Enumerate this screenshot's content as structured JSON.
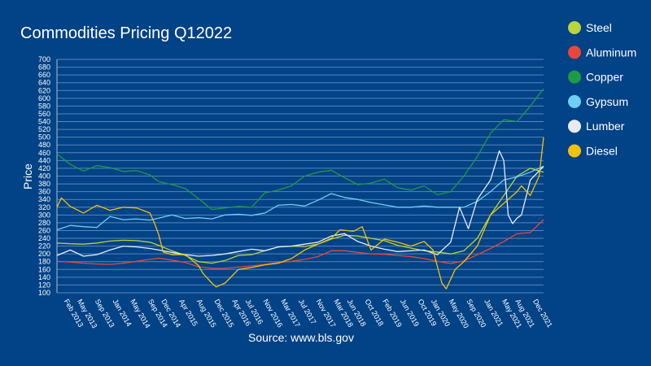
{
  "chart_data": {
    "type": "line",
    "title": "Commodities Pricing Q12022",
    "ylabel": "Price",
    "source": "Source: www.bls.gov",
    "ylim": [
      100,
      700
    ],
    "yticks": [
      100,
      120,
      140,
      160,
      180,
      200,
      220,
      240,
      260,
      280,
      300,
      320,
      340,
      360,
      380,
      400,
      420,
      440,
      460,
      480,
      500,
      520,
      540,
      560,
      580,
      600,
      620,
      640,
      660,
      680,
      700
    ],
    "x_start": "Jan 2013",
    "x_end": "Mar 2022",
    "xticks": [
      "Feb 2013",
      "May 2013",
      "Sep 2013",
      "Jan 2014",
      "May 2014",
      "Sep 2014",
      "Dec 2014",
      "Apr 2015",
      "Aug 2015",
      "Dec 2015",
      "Apr 2016",
      "Jul 2016",
      "Nov 2016",
      "Mar 2017",
      "Jul 2017",
      "Nov 2017",
      "Mar 2018",
      "Jun 2018",
      "Oct 2018",
      "Feb 2019",
      "Jun 2019",
      "Oct 2019",
      "Jan 2020",
      "May 2020",
      "Sep 2020",
      "Jan 2021",
      "May 2021",
      "Aug 2021",
      "Dec 2021"
    ],
    "legend_position": "right",
    "grid": true,
    "series": [
      {
        "name": "Steel",
        "color": "#b9d53c",
        "points": [
          [
            "Jan 2013",
            228
          ],
          [
            "Apr 2013",
            226
          ],
          [
            "Jul 2013",
            225
          ],
          [
            "Oct 2013",
            228
          ],
          [
            "Jan 2014",
            233
          ],
          [
            "Apr 2014",
            235
          ],
          [
            "Jul 2014",
            234
          ],
          [
            "Oct 2014",
            230
          ],
          [
            "Dec 2014",
            222
          ],
          [
            "Mar 2015",
            208
          ],
          [
            "Jun 2015",
            196
          ],
          [
            "Sep 2015",
            180
          ],
          [
            "Dec 2015",
            176
          ],
          [
            "Mar 2016",
            183
          ],
          [
            "Jun 2016",
            196
          ],
          [
            "Sep 2016",
            198
          ],
          [
            "Dec 2016",
            208
          ],
          [
            "Mar 2017",
            218
          ],
          [
            "Jun 2017",
            220
          ],
          [
            "Sep 2017",
            219
          ],
          [
            "Dec 2017",
            225
          ],
          [
            "Mar 2018",
            238
          ],
          [
            "Jun 2018",
            248
          ],
          [
            "Sep 2018",
            246
          ],
          [
            "Dec 2018",
            240
          ],
          [
            "Mar 2019",
            234
          ],
          [
            "Jun 2019",
            222
          ],
          [
            "Sep 2019",
            215
          ],
          [
            "Dec 2019",
            208
          ],
          [
            "Mar 2020",
            205
          ],
          [
            "Jun 2020",
            200
          ],
          [
            "Sep 2020",
            208
          ],
          [
            "Dec 2020",
            240
          ],
          [
            "Mar 2021",
            300
          ],
          [
            "Jun 2021",
            350
          ],
          [
            "Sep 2021",
            400
          ],
          [
            "Dec 2021",
            420
          ],
          [
            "Mar 2022",
            410
          ]
        ]
      },
      {
        "name": "Aluminum",
        "color": "#e8473c",
        "points": [
          [
            "Jan 2013",
            181
          ],
          [
            "Apr 2013",
            179
          ],
          [
            "Jul 2013",
            176
          ],
          [
            "Oct 2013",
            174
          ],
          [
            "Jan 2014",
            173
          ],
          [
            "Apr 2014",
            176
          ],
          [
            "Jul 2014",
            181
          ],
          [
            "Oct 2014",
            186
          ],
          [
            "Dec 2014",
            189
          ],
          [
            "Mar 2015",
            184
          ],
          [
            "Jun 2015",
            178
          ],
          [
            "Sep 2015",
            167
          ],
          [
            "Dec 2015",
            163
          ],
          [
            "Mar 2016",
            163
          ],
          [
            "Jun 2016",
            166
          ],
          [
            "Sep 2016",
            169
          ],
          [
            "Dec 2016",
            173
          ],
          [
            "Mar 2017",
            178
          ],
          [
            "Jun 2017",
            181
          ],
          [
            "Sep 2017",
            186
          ],
          [
            "Dec 2017",
            193
          ],
          [
            "Mar 2018",
            208
          ],
          [
            "Jun 2018",
            208
          ],
          [
            "Sep 2018",
            204
          ],
          [
            "Dec 2018",
            200
          ],
          [
            "Mar 2019",
            199
          ],
          [
            "Jun 2019",
            196
          ],
          [
            "Sep 2019",
            193
          ],
          [
            "Dec 2019",
            188
          ],
          [
            "Mar 2020",
            181
          ],
          [
            "Jun 2020",
            175
          ],
          [
            "Sep 2020",
            182
          ],
          [
            "Dec 2020",
            198
          ],
          [
            "Mar 2021",
            214
          ],
          [
            "Jun 2021",
            232
          ],
          [
            "Sep 2021",
            252
          ],
          [
            "Dec 2021",
            255
          ],
          [
            "Mar 2022",
            288
          ]
        ]
      },
      {
        "name": "Copper",
        "color": "#1e9a45",
        "points": [
          [
            "Jan 2013",
            457
          ],
          [
            "Apr 2013",
            430
          ],
          [
            "Jul 2013",
            413
          ],
          [
            "Oct 2013",
            427
          ],
          [
            "Jan 2014",
            422
          ],
          [
            "Apr 2014",
            412
          ],
          [
            "Jul 2014",
            414
          ],
          [
            "Oct 2014",
            403
          ],
          [
            "Dec 2014",
            386
          ],
          [
            "Mar 2015",
            378
          ],
          [
            "Jun 2015",
            368
          ],
          [
            "Sep 2015",
            342
          ],
          [
            "Dec 2015",
            314
          ],
          [
            "Mar 2016",
            318
          ],
          [
            "Jun 2016",
            322
          ],
          [
            "Sep 2016",
            320
          ],
          [
            "Dec 2016",
            357
          ],
          [
            "Mar 2017",
            364
          ],
          [
            "Jun 2017",
            375
          ],
          [
            "Sep 2017",
            400
          ],
          [
            "Dec 2017",
            410
          ],
          [
            "Mar 2018",
            415
          ],
          [
            "Jun 2018",
            396
          ],
          [
            "Sep 2018",
            378
          ],
          [
            "Dec 2018",
            382
          ],
          [
            "Mar 2019",
            392
          ],
          [
            "Jun 2019",
            370
          ],
          [
            "Sep 2019",
            364
          ],
          [
            "Dec 2019",
            375
          ],
          [
            "Mar 2020",
            352
          ],
          [
            "Jun 2020",
            360
          ],
          [
            "Sep 2020",
            400
          ],
          [
            "Dec 2020",
            450
          ],
          [
            "Mar 2021",
            510
          ],
          [
            "Jun 2021",
            545
          ],
          [
            "Sep 2021",
            540
          ],
          [
            "Dec 2021",
            580
          ],
          [
            "Mar 2022",
            625
          ]
        ]
      },
      {
        "name": "Gypsum",
        "color": "#6dcff6",
        "points": [
          [
            "Jan 2013",
            262
          ],
          [
            "Apr 2013",
            273
          ],
          [
            "Jul 2013",
            270
          ],
          [
            "Oct 2013",
            268
          ],
          [
            "Jan 2014",
            296
          ],
          [
            "Apr 2014",
            288
          ],
          [
            "Jul 2014",
            290
          ],
          [
            "Oct 2014",
            287
          ],
          [
            "Dec 2014",
            292
          ],
          [
            "Mar 2015",
            300
          ],
          [
            "Jun 2015",
            291
          ],
          [
            "Sep 2015",
            293
          ],
          [
            "Dec 2015",
            290
          ],
          [
            "Mar 2016",
            300
          ],
          [
            "Jun 2016",
            302
          ],
          [
            "Sep 2016",
            299
          ],
          [
            "Dec 2016",
            305
          ],
          [
            "Mar 2017",
            325
          ],
          [
            "Jun 2017",
            327
          ],
          [
            "Sep 2017",
            323
          ],
          [
            "Dec 2017",
            338
          ],
          [
            "Mar 2018",
            355
          ],
          [
            "Jun 2018",
            345
          ],
          [
            "Sep 2018",
            340
          ],
          [
            "Dec 2018",
            332
          ],
          [
            "Mar 2019",
            326
          ],
          [
            "Jun 2019",
            320
          ],
          [
            "Sep 2019",
            320
          ],
          [
            "Dec 2019",
            323
          ],
          [
            "Mar 2020",
            320
          ],
          [
            "Jun 2020",
            320
          ],
          [
            "Sep 2020",
            320
          ],
          [
            "Dec 2020",
            335
          ],
          [
            "Mar 2021",
            360
          ],
          [
            "Jun 2021",
            390
          ],
          [
            "Sep 2021",
            398
          ],
          [
            "Dec 2021",
            410
          ],
          [
            "Mar 2022",
            425
          ]
        ]
      },
      {
        "name": "Lumber",
        "color": "#e8ecf2",
        "points": [
          [
            "Jan 2013",
            196
          ],
          [
            "Apr 2013",
            210
          ],
          [
            "Jul 2013",
            194
          ],
          [
            "Oct 2013",
            198
          ],
          [
            "Jan 2014",
            210
          ],
          [
            "Apr 2014",
            220
          ],
          [
            "Jul 2014",
            218
          ],
          [
            "Oct 2014",
            214
          ],
          [
            "Dec 2014",
            210
          ],
          [
            "Mar 2015",
            204
          ],
          [
            "Jun 2015",
            198
          ],
          [
            "Sep 2015",
            194
          ],
          [
            "Dec 2015",
            196
          ],
          [
            "Mar 2016",
            200
          ],
          [
            "Jun 2016",
            206
          ],
          [
            "Sep 2016",
            212
          ],
          [
            "Dec 2016",
            208
          ],
          [
            "Mar 2017",
            218
          ],
          [
            "Jun 2017",
            220
          ],
          [
            "Sep 2017",
            225
          ],
          [
            "Dec 2017",
            230
          ],
          [
            "Mar 2018",
            246
          ],
          [
            "Jun 2018",
            252
          ],
          [
            "Sep 2018",
            232
          ],
          [
            "Dec 2018",
            220
          ],
          [
            "Mar 2019",
            212
          ],
          [
            "Jun 2019",
            206
          ],
          [
            "Sep 2019",
            208
          ],
          [
            "Dec 2019",
            210
          ],
          [
            "Mar 2020",
            198
          ],
          [
            "Jun 2020",
            230
          ],
          [
            "Aug 2020",
            320
          ],
          [
            "Oct 2020",
            265
          ],
          [
            "Dec 2020",
            340
          ],
          [
            "Mar 2021",
            390
          ],
          [
            "May 2021",
            465
          ],
          [
            "Jun 2021",
            440
          ],
          [
            "Jul 2021",
            300
          ],
          [
            "Aug 2021",
            278
          ],
          [
            "Sep 2021",
            292
          ],
          [
            "Oct 2021",
            300
          ],
          [
            "Dec 2021",
            390
          ],
          [
            "Mar 2022",
            425
          ]
        ]
      },
      {
        "name": "Diesel",
        "color": "#f2c10f",
        "points": [
          [
            "Jan 2013",
            320
          ],
          [
            "Feb 2013",
            344
          ],
          [
            "Apr 2013",
            322
          ],
          [
            "Jul 2013",
            305
          ],
          [
            "Oct 2013",
            325
          ],
          [
            "Jan 2014",
            312
          ],
          [
            "Apr 2014",
            320
          ],
          [
            "Jul 2014",
            318
          ],
          [
            "Oct 2014",
            305
          ],
          [
            "Nov 2014",
            280
          ],
          [
            "Dec 2014",
            250
          ],
          [
            "Jan 2015",
            205
          ],
          [
            "Mar 2015",
            198
          ],
          [
            "Jun 2015",
            198
          ],
          [
            "Sep 2015",
            170
          ],
          [
            "Oct 2015",
            150
          ],
          [
            "Dec 2015",
            125
          ],
          [
            "Jan 2016",
            115
          ],
          [
            "Mar 2016",
            125
          ],
          [
            "Jun 2016",
            160
          ],
          [
            "Sep 2016",
            165
          ],
          [
            "Dec 2016",
            172
          ],
          [
            "Mar 2017",
            176
          ],
          [
            "Jun 2017",
            188
          ],
          [
            "Sep 2017",
            210
          ],
          [
            "Dec 2017",
            225
          ],
          [
            "Mar 2018",
            240
          ],
          [
            "May 2018",
            262
          ],
          [
            "Aug 2018",
            258
          ],
          [
            "Oct 2018",
            270
          ],
          [
            "Dec 2018",
            210
          ],
          [
            "Mar 2019",
            238
          ],
          [
            "Jun 2019",
            230
          ],
          [
            "Sep 2019",
            220
          ],
          [
            "Dec 2019",
            232
          ],
          [
            "Feb 2020",
            210
          ],
          [
            "Apr 2020",
            125
          ],
          [
            "May 2020",
            110
          ],
          [
            "Jul 2020",
            160
          ],
          [
            "Sep 2020",
            180
          ],
          [
            "Dec 2020",
            220
          ],
          [
            "Mar 2021",
            300
          ],
          [
            "Jun 2021",
            330
          ],
          [
            "Sep 2021",
            360
          ],
          [
            "Oct 2021",
            375
          ],
          [
            "Dec 2021",
            350
          ],
          [
            "Feb 2022",
            400
          ],
          [
            "Mar 2022",
            500
          ]
        ]
      }
    ]
  }
}
